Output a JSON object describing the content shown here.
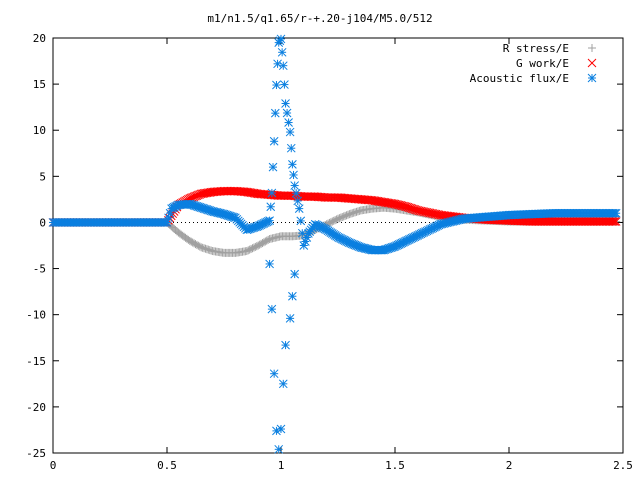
{
  "chart_data": {
    "type": "scatter",
    "title": "m1/n1.5/q1.65/r-+.20-j104/M5.0/512",
    "xlabel": "",
    "ylabel": "",
    "xlim": [
      0,
      2.5
    ],
    "ylim": [
      -25,
      20
    ],
    "x_ticks": [
      "0",
      "0.5",
      "1",
      "1.5",
      "2",
      "2.5"
    ],
    "y_ticks": [
      "20",
      "15",
      "10",
      "5",
      "0",
      "-5",
      "-10",
      "-15",
      "-20",
      "-25"
    ],
    "grid": false,
    "legend_position": "top-right",
    "series": [
      {
        "name": "R stress/E",
        "marker": "plus",
        "color": "#a0a0a0",
        "x": [
          0.0,
          0.1,
          0.2,
          0.3,
          0.4,
          0.5,
          0.55,
          0.6,
          0.65,
          0.7,
          0.75,
          0.8,
          0.85,
          0.9,
          0.95,
          1.0,
          1.05,
          1.1,
          1.15,
          1.2,
          1.25,
          1.3,
          1.35,
          1.4,
          1.45,
          1.5,
          1.55,
          1.6,
          1.7,
          1.8,
          1.9,
          2.0,
          2.1,
          2.2,
          2.3,
          2.4,
          2.47
        ],
        "y": [
          0.0,
          0.0,
          0.0,
          0.0,
          0.0,
          0.0,
          -1.1,
          -2.0,
          -2.7,
          -3.1,
          -3.3,
          -3.3,
          -3.1,
          -2.5,
          -1.8,
          -1.5,
          -1.5,
          -1.4,
          -0.8,
          -0.2,
          0.4,
          0.9,
          1.3,
          1.5,
          1.6,
          1.5,
          1.3,
          1.1,
          0.6,
          0.3,
          0.2,
          0.1,
          0.1,
          0.1,
          0.1,
          0.1,
          0.1
        ]
      },
      {
        "name": "G work/E",
        "marker": "cross",
        "color": "#ff0000",
        "x": [
          0.0,
          0.1,
          0.2,
          0.3,
          0.4,
          0.5,
          0.55,
          0.6,
          0.65,
          0.7,
          0.75,
          0.8,
          0.85,
          0.9,
          0.95,
          1.0,
          1.05,
          1.1,
          1.15,
          1.2,
          1.25,
          1.3,
          1.35,
          1.4,
          1.45,
          1.5,
          1.55,
          1.6,
          1.7,
          1.8,
          1.9,
          2.0,
          2.1,
          2.2,
          2.3,
          2.4,
          2.47
        ],
        "y": [
          0.0,
          0.0,
          0.0,
          0.0,
          0.0,
          0.0,
          1.9,
          2.6,
          3.1,
          3.3,
          3.4,
          3.4,
          3.3,
          3.1,
          3.0,
          2.9,
          2.9,
          2.8,
          2.8,
          2.7,
          2.7,
          2.6,
          2.5,
          2.4,
          2.2,
          2.0,
          1.7,
          1.3,
          0.8,
          0.5,
          0.3,
          0.2,
          0.1,
          0.1,
          0.1,
          0.1,
          0.1
        ]
      },
      {
        "name": "Acoustic flux/E",
        "marker": "star",
        "color": "#0a7fe0",
        "x": [
          0.0,
          0.1,
          0.2,
          0.3,
          0.4,
          0.5,
          0.52,
          0.55,
          0.6,
          0.65,
          0.7,
          0.75,
          0.8,
          0.85,
          0.9,
          0.95,
          0.96,
          0.97,
          0.98,
          0.99,
          1.0,
          1.01,
          1.02,
          1.04,
          1.05,
          1.06,
          1.08,
          1.1,
          1.12,
          1.15,
          1.2,
          1.25,
          1.3,
          1.35,
          1.4,
          1.45,
          1.5,
          1.55,
          1.6,
          1.7,
          1.8,
          1.9,
          2.0,
          2.1,
          2.2,
          2.3,
          2.4,
          2.47
        ],
        "y": [
          0.0,
          0.0,
          0.0,
          0.0,
          0.0,
          0.0,
          1.5,
          1.9,
          2.0,
          1.6,
          1.2,
          0.9,
          0.5,
          -0.8,
          -0.4,
          0.2,
          3.2,
          8.8,
          14.9,
          19.5,
          19.9,
          17.0,
          12.9,
          9.8,
          6.3,
          4.0,
          1.5,
          -2.5,
          -1.2,
          -0.2,
          -0.8,
          -1.6,
          -2.2,
          -2.7,
          -3.0,
          -3.0,
          -2.6,
          -2.0,
          -1.4,
          -0.2,
          0.4,
          0.6,
          0.8,
          0.9,
          1.0,
          1.0,
          1.0,
          1.0
        ]
      },
      {
        "name": "",
        "marker": "star",
        "color": "#0a7fe0",
        "x": [
          0.95,
          0.96,
          0.97,
          0.98,
          0.99,
          1.0,
          1.01,
          1.02,
          1.04,
          1.05,
          1.06
        ],
        "y": [
          -4.5,
          -9.4,
          -16.4,
          -22.6,
          -24.6,
          -22.4,
          -17.5,
          -13.3,
          -10.4,
          -8.0,
          -5.6
        ]
      }
    ]
  }
}
